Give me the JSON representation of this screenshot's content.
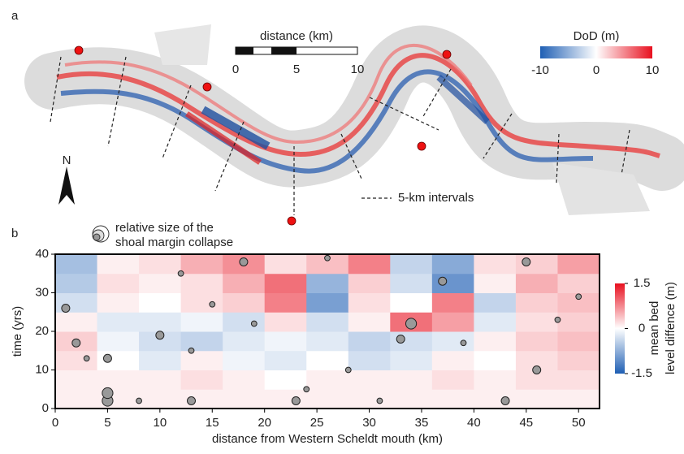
{
  "panel_a": {
    "label": "a",
    "scale_bar": {
      "title": "distance (km)",
      "lim": [
        0,
        10
      ],
      "ticks": [
        0,
        5,
        10
      ]
    },
    "colorbar": {
      "title": "DoD (m)",
      "lim": [
        -10,
        10
      ],
      "ticks": [
        -10,
        0,
        10
      ]
    },
    "north": "N",
    "interval_legend": "5-km intervals"
  },
  "chart_data": {
    "type": "heatmap",
    "label": "b",
    "xlabel": "distance from Western Scheldt mouth (km)",
    "ylabel": "time (yrs)",
    "xlim": [
      0,
      52
    ],
    "xticks": [
      0,
      5,
      10,
      15,
      20,
      25,
      30,
      35,
      40,
      45,
      50
    ],
    "ylim": [
      0,
      40
    ],
    "yticks": [
      0,
      10,
      20,
      30,
      40
    ],
    "x_bins": [
      0,
      4,
      8,
      12,
      16,
      20,
      24,
      28,
      32,
      36,
      40,
      44,
      48,
      52
    ],
    "y_bins": [
      0,
      5,
      10,
      15,
      20,
      25,
      30,
      35,
      40
    ],
    "values": [
      [
        0.1,
        0.1,
        0.1,
        0.1,
        0.1,
        0.1,
        0.1,
        0.1,
        0.1,
        0.1,
        0.1,
        0.1,
        0.1
      ],
      [
        0.1,
        0.1,
        0.1,
        0.2,
        0.1,
        0.0,
        0.1,
        0.1,
        0.1,
        0.2,
        0.1,
        0.2,
        0.2
      ],
      [
        0.2,
        0.0,
        -0.2,
        0.1,
        -0.1,
        -0.2,
        0.0,
        -0.3,
        -0.2,
        0.1,
        0.0,
        0.2,
        0.3
      ],
      [
        0.3,
        -0.1,
        -0.3,
        -0.4,
        -0.2,
        -0.1,
        -0.2,
        -0.4,
        -0.3,
        -0.2,
        0.1,
        0.3,
        0.4
      ],
      [
        0.1,
        -0.2,
        -0.2,
        -0.1,
        -0.3,
        0.2,
        -0.3,
        0.1,
        0.9,
        0.6,
        -0.2,
        0.2,
        0.3
      ],
      [
        -0.3,
        0.1,
        0.0,
        0.2,
        0.3,
        0.8,
        -0.9,
        0.2,
        0.0,
        0.8,
        -0.4,
        0.3,
        0.4
      ],
      [
        -0.5,
        0.2,
        0.1,
        0.2,
        0.5,
        0.9,
        -0.7,
        0.3,
        -0.3,
        -1.0,
        0.1,
        0.5,
        0.3
      ],
      [
        -0.6,
        0.1,
        0.2,
        0.5,
        0.7,
        0.2,
        0.4,
        0.8,
        -0.4,
        -0.8,
        0.2,
        0.3,
        0.6
      ]
    ],
    "colorbar": {
      "title": [
        "mean bed",
        "level diffence (m)"
      ],
      "lim": [
        -1.5,
        1.5
      ],
      "ticks": [
        -1.5,
        0,
        1.5
      ]
    },
    "collapse": {
      "name": [
        "relative size of the",
        "shoal margin collapse"
      ],
      "x": [
        5,
        5,
        5,
        1,
        2,
        10,
        13,
        13,
        18,
        23,
        24,
        34,
        33,
        37,
        46,
        43,
        45,
        48,
        31,
        8,
        19,
        28,
        12,
        39,
        50,
        3,
        15,
        26
      ],
      "y": [
        2,
        4,
        13,
        26,
        17,
        19,
        2,
        15,
        38,
        2,
        5,
        22,
        18,
        33,
        10,
        2,
        38,
        23,
        2,
        2,
        22,
        10,
        35,
        17,
        29,
        13,
        27,
        39
      ],
      "size": [
        3,
        3,
        2,
        2,
        2,
        2,
        2,
        1,
        2,
        2,
        1,
        3,
        2,
        2,
        2,
        2,
        2,
        1,
        1,
        1,
        1,
        1,
        1,
        1,
        1,
        1,
        1,
        1
      ]
    }
  }
}
